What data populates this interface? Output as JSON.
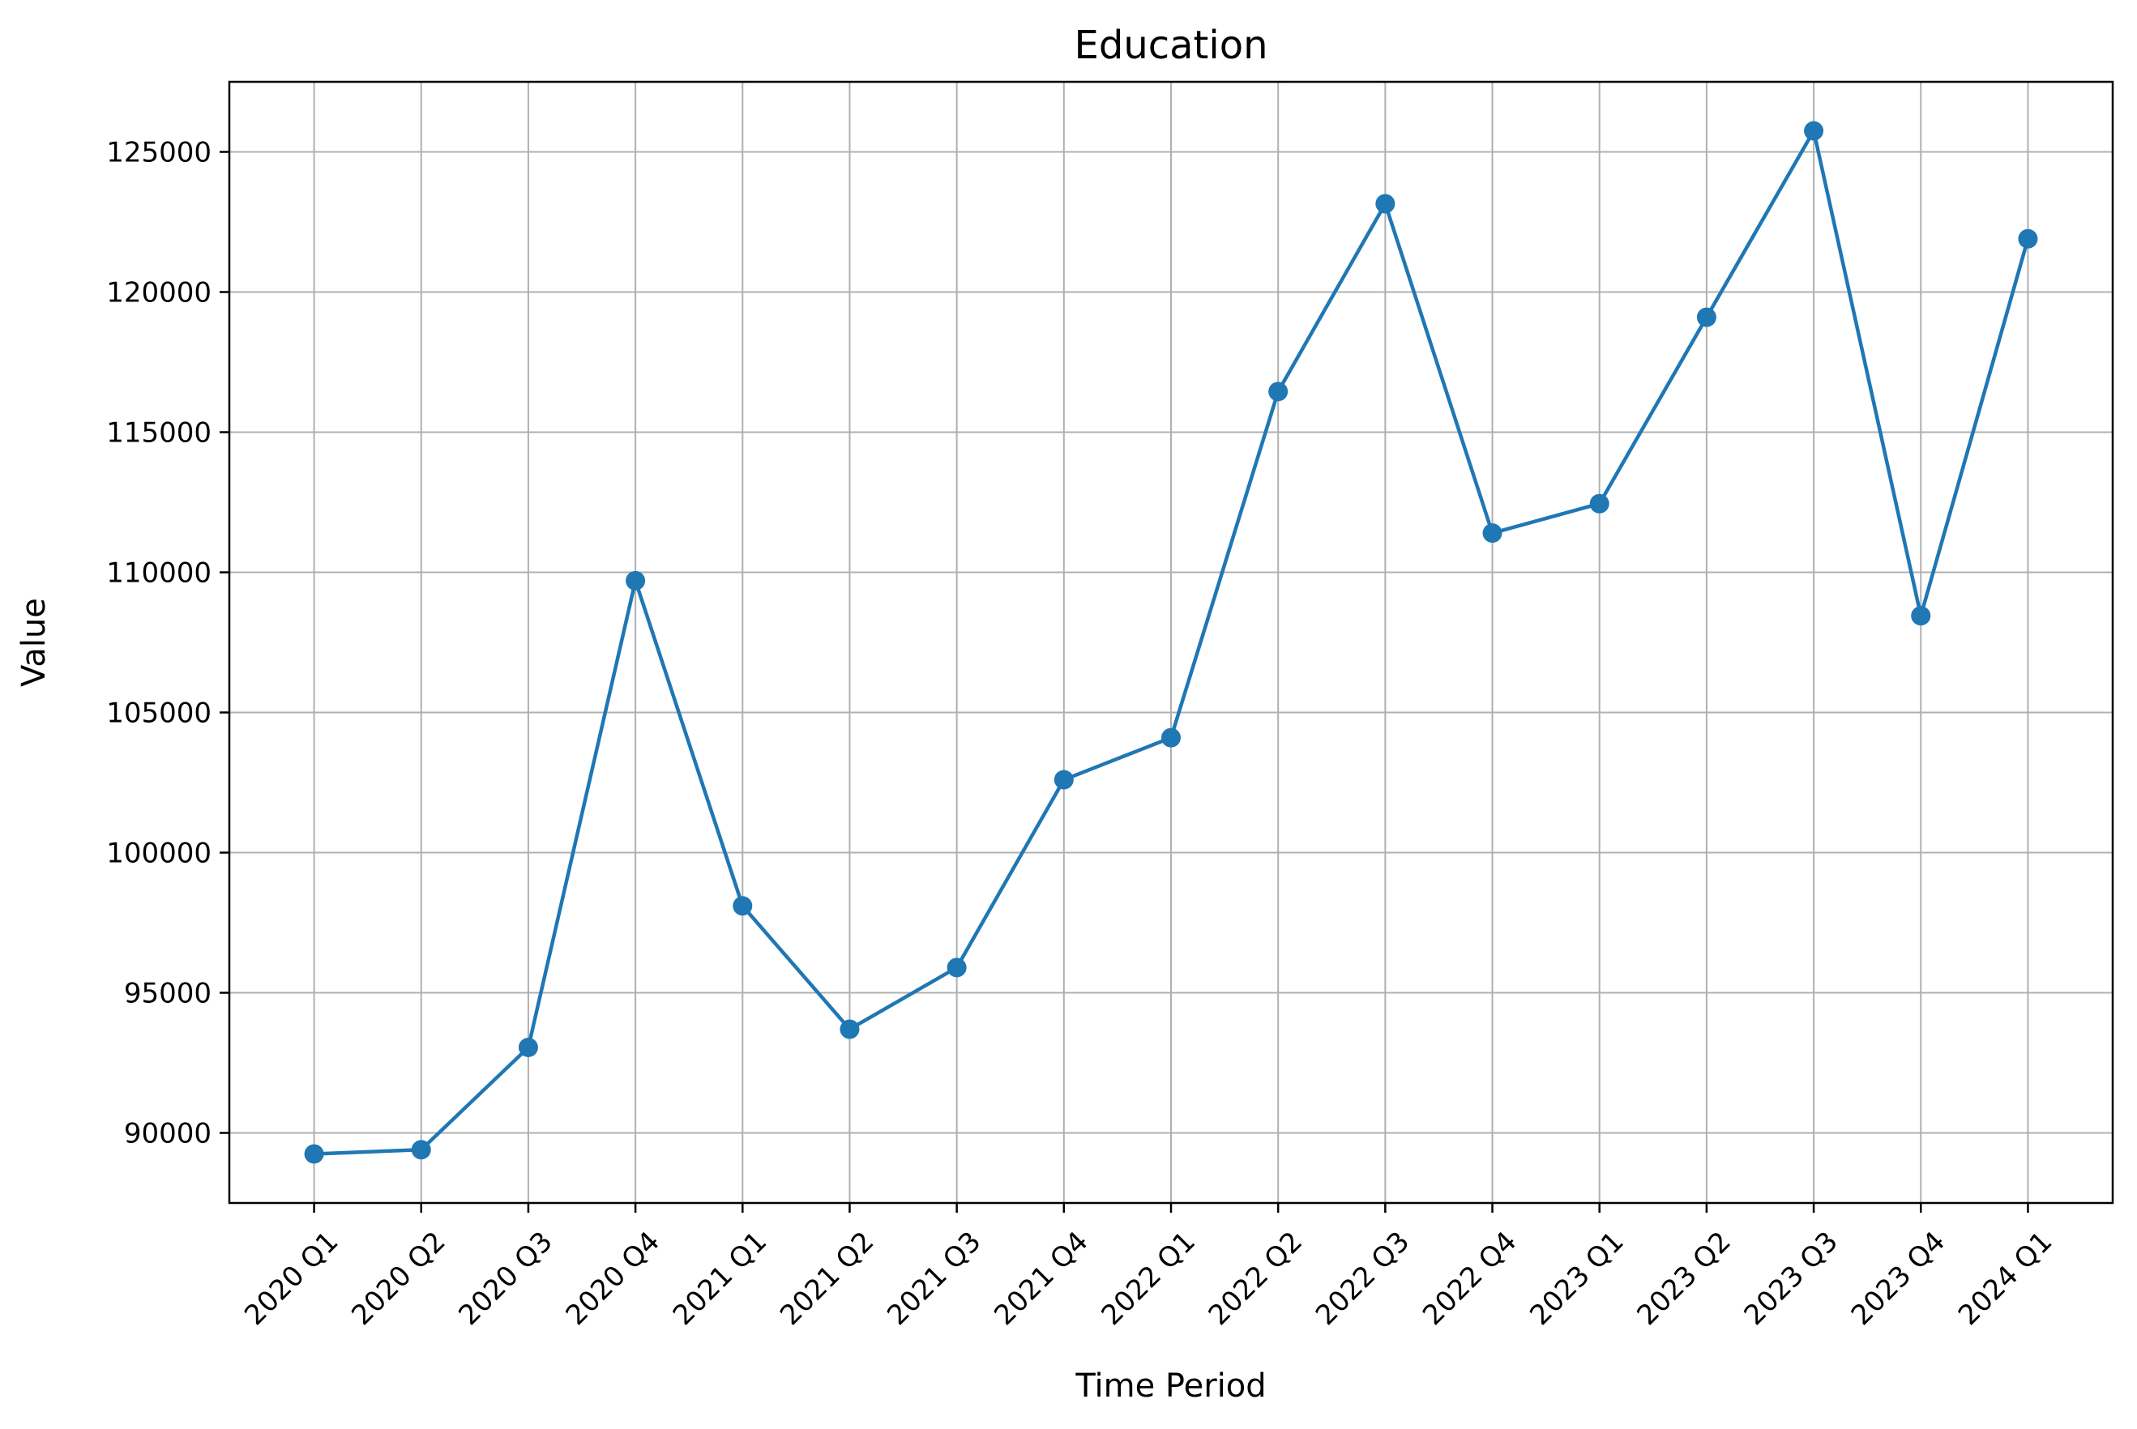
{
  "chart_data": {
    "type": "line",
    "title": "Education",
    "xlabel": "Time Period",
    "ylabel": "Value",
    "categories": [
      "2020 Q1",
      "2020 Q2",
      "2020 Q3",
      "2020 Q4",
      "2021 Q1",
      "2021 Q2",
      "2021 Q3",
      "2021 Q4",
      "2022 Q1",
      "2022 Q2",
      "2022 Q3",
      "2022 Q4",
      "2023 Q1",
      "2023 Q2",
      "2023 Q3",
      "2023 Q4",
      "2024 Q1"
    ],
    "series": [
      {
        "values": [
          89250,
          89400,
          93050,
          109700,
          98100,
          93700,
          95900,
          102600,
          104100,
          116450,
          123150,
          111400,
          112450,
          119100,
          125750,
          108450,
          121900
        ],
        "color": "#1f77b4",
        "marker": "circle"
      }
    ],
    "ylim": [
      87500,
      127500
    ],
    "yticks": [
      90000,
      95000,
      100000,
      105000,
      110000,
      115000,
      120000,
      125000
    ],
    "grid": true,
    "legend": "none"
  }
}
